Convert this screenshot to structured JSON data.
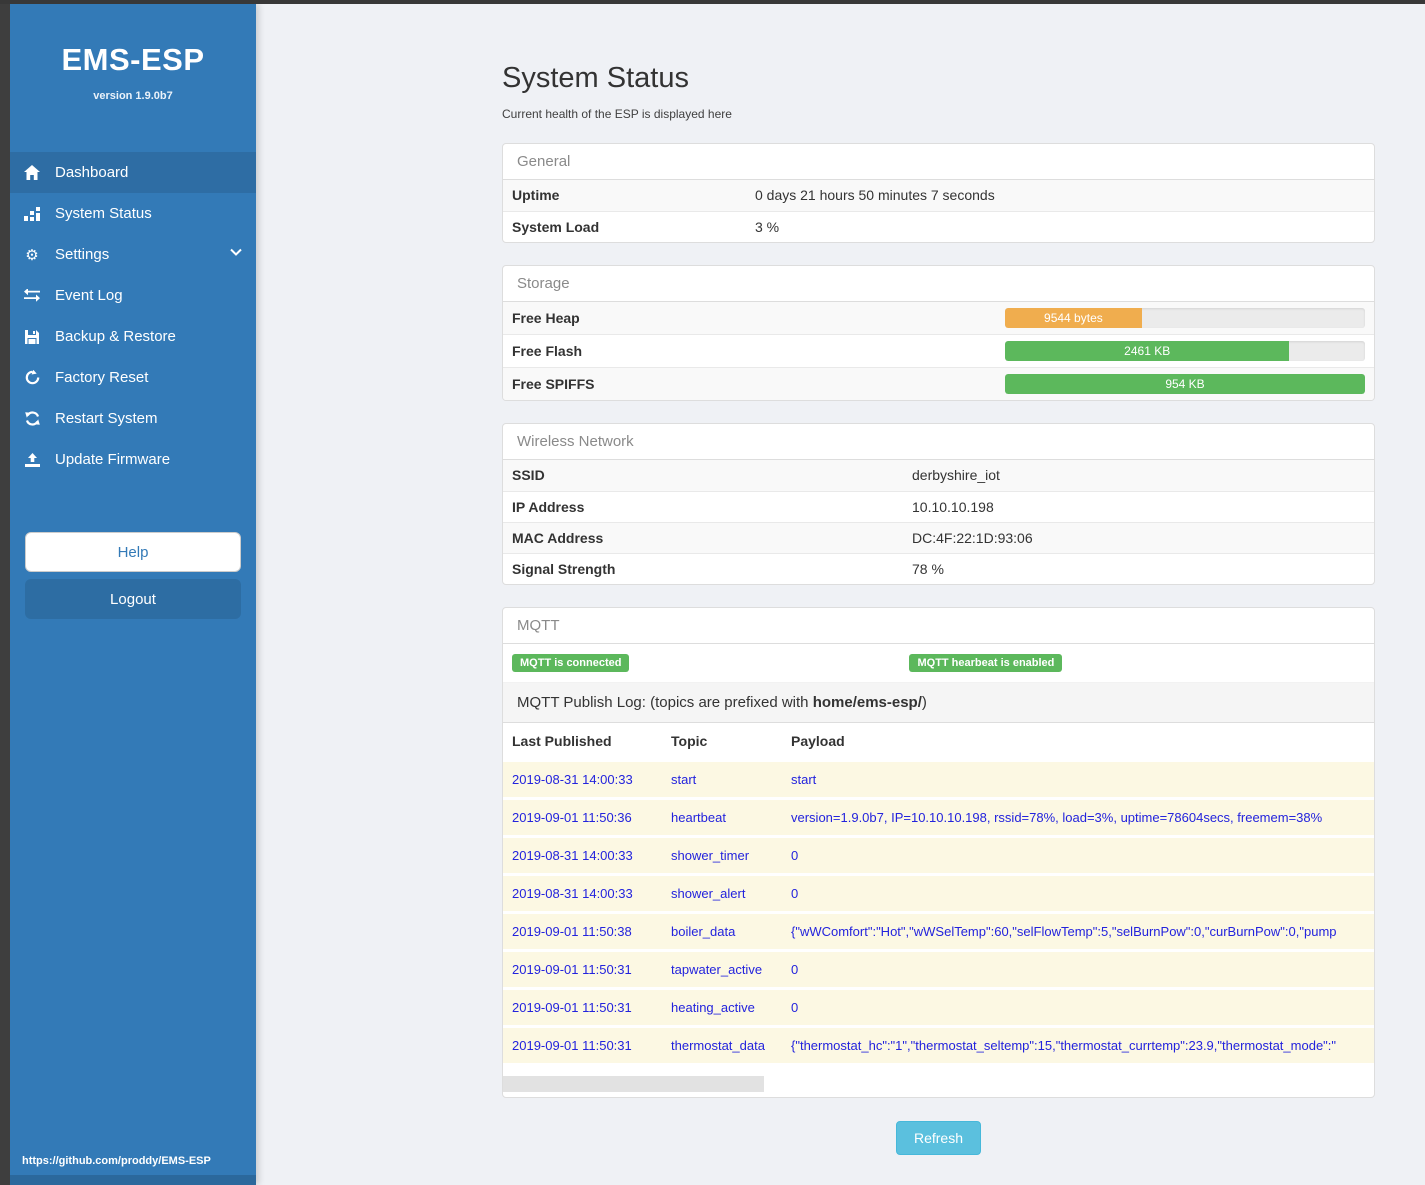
{
  "colors": {
    "sidebar": "#337ab7",
    "sidebar_active": "#2e6da4",
    "success_green": "#5cb85c",
    "warning_orange": "#f0ad4e",
    "info_blue": "#5bc0de",
    "log_text_blue": "#2323dd"
  },
  "sidebar": {
    "title": "EMS-ESP",
    "version": "version 1.9.0b7",
    "items": [
      {
        "label": "Dashboard",
        "icon": "home-icon",
        "active": true
      },
      {
        "label": "System Status",
        "icon": "system-status-icon",
        "active": false
      },
      {
        "label": "Settings",
        "icon": "gear-icon",
        "active": false,
        "chevron": true
      },
      {
        "label": "Event Log",
        "icon": "exchange-icon",
        "active": false
      },
      {
        "label": "Backup & Restore",
        "icon": "save-icon",
        "active": false
      },
      {
        "label": "Factory Reset",
        "icon": "rotate-icon",
        "active": false
      },
      {
        "label": "Restart System",
        "icon": "refresh-icon",
        "active": false
      },
      {
        "label": "Update Firmware",
        "icon": "upload-icon",
        "active": false
      }
    ],
    "help_label": "Help",
    "logout_label": "Logout",
    "footer_link": "https://github.com/proddy/EMS-ESP"
  },
  "page": {
    "title": "System Status",
    "subtitle": "Current health of the ESP is displayed here",
    "refresh_label": "Refresh"
  },
  "general": {
    "heading": "General",
    "rows": [
      {
        "label": "Uptime",
        "value": "0 days 21 hours 50 minutes 7 seconds"
      },
      {
        "label": "System Load",
        "value": "3 %"
      }
    ]
  },
  "storage": {
    "heading": "Storage",
    "rows": [
      {
        "label": "Free Heap",
        "bar_label": "9544 bytes",
        "percent": 38,
        "color": "#f0ad4e"
      },
      {
        "label": "Free Flash",
        "bar_label": "2461 KB",
        "percent": 79,
        "color": "#5cb85c"
      },
      {
        "label": "Free SPIFFS",
        "bar_label": "954 KB",
        "percent": 100,
        "color": "#5cb85c"
      }
    ]
  },
  "wireless": {
    "heading": "Wireless Network",
    "rows": [
      {
        "label": "SSID",
        "value": "derbyshire_iot"
      },
      {
        "label": "IP Address",
        "value": "10.10.10.198"
      },
      {
        "label": "MAC Address",
        "value": "DC:4F:22:1D:93:06"
      },
      {
        "label": "Signal Strength",
        "value": "78 %"
      }
    ]
  },
  "mqtt": {
    "heading": "MQTT",
    "badges": [
      {
        "label": "MQTT is connected"
      },
      {
        "label": "MQTT hearbeat is enabled"
      }
    ],
    "publish_log": {
      "prefix": "MQTT Publish Log: (topics are prefixed with ",
      "topic_prefix": "home/ems-esp/",
      "suffix": ")"
    },
    "columns": [
      "Last Published",
      "Topic",
      "Payload"
    ],
    "rows": [
      {
        "time": "2019-08-31 14:00:33",
        "topic": "start",
        "payload": "start"
      },
      {
        "time": "2019-09-01 11:50:36",
        "topic": "heartbeat",
        "payload": "version=1.9.0b7, IP=10.10.10.198, rssid=78%, load=3%, uptime=78604secs, freemem=38%"
      },
      {
        "time": "2019-08-31 14:00:33",
        "topic": "shower_timer",
        "payload": "0"
      },
      {
        "time": "2019-08-31 14:00:33",
        "topic": "shower_alert",
        "payload": "0"
      },
      {
        "time": "2019-09-01 11:50:38",
        "topic": "boiler_data",
        "payload": "{\"wWComfort\":\"Hot\",\"wWSelTemp\":60,\"selFlowTemp\":5,\"selBurnPow\":0,\"curBurnPow\":0,\"pump"
      },
      {
        "time": "2019-09-01 11:50:31",
        "topic": "tapwater_active",
        "payload": "0"
      },
      {
        "time": "2019-09-01 11:50:31",
        "topic": "heating_active",
        "payload": "0"
      },
      {
        "time": "2019-09-01 11:50:31",
        "topic": "thermostat_data",
        "payload": "{\"thermostat_hc\":\"1\",\"thermostat_seltemp\":15,\"thermostat_currtemp\":23.9,\"thermostat_mode\":\""
      }
    ]
  }
}
